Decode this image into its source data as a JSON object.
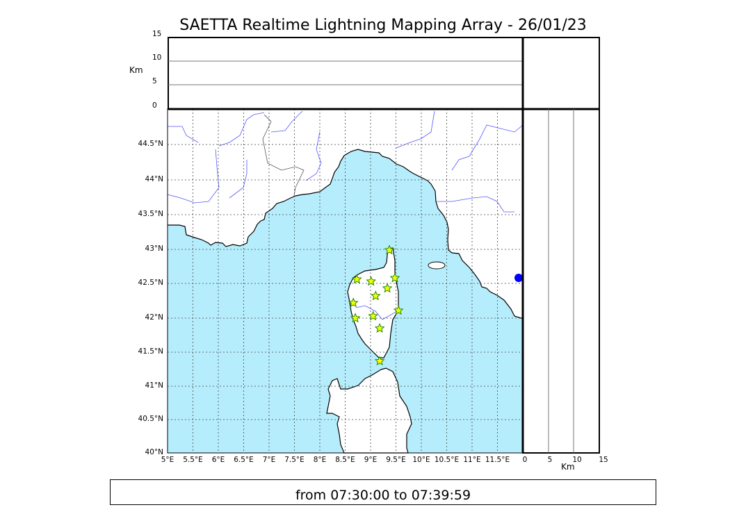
{
  "title": "SAETTA Realtime Lightning Mapping Array - 26/01/23",
  "time_range": "from 07:30:00 to 07:39:59",
  "altitude_panel": {
    "unit_label": "Km",
    "ticks": [
      "0",
      "5",
      "10",
      "15"
    ]
  },
  "side_panel": {
    "unit_label": "Km",
    "ticks": [
      "0",
      "5",
      "10",
      "15"
    ]
  },
  "map": {
    "lon_ticks": [
      "5°E",
      "5.5°E",
      "6°E",
      "6.5°E",
      "7°E",
      "7.5°E",
      "8°E",
      "8.5°E",
      "9°E",
      "9.5°E",
      "10°E",
      "10.5°E",
      "11°E",
      "11.5°E"
    ],
    "lat_ticks": [
      "40°N",
      "40.5°N",
      "41°N",
      "41.5°N",
      "42°N",
      "42.5°N",
      "43°N",
      "43.5°N",
      "44°N",
      "44.5°N"
    ],
    "lon_range": [
      5,
      12
    ],
    "lat_range": [
      40,
      45
    ],
    "sea_color": "#b6edfc",
    "river_color": "#5555ff",
    "marker": {
      "shape": "star",
      "fill": "#ffff00",
      "stroke": "#1a8a00"
    },
    "strikes": [
      {
        "lon": 9.37,
        "lat": 42.99
      },
      {
        "lon": 8.73,
        "lat": 42.56
      },
      {
        "lon": 9.01,
        "lat": 42.53
      },
      {
        "lon": 9.48,
        "lat": 42.58
      },
      {
        "lon": 9.33,
        "lat": 42.43
      },
      {
        "lon": 9.1,
        "lat": 42.32
      },
      {
        "lon": 8.66,
        "lat": 42.22
      },
      {
        "lon": 9.55,
        "lat": 42.11
      },
      {
        "lon": 9.05,
        "lat": 42.03
      },
      {
        "lon": 8.7,
        "lat": 42.0
      },
      {
        "lon": 9.18,
        "lat": 41.85
      },
      {
        "lon": 9.18,
        "lat": 41.37
      }
    ]
  }
}
